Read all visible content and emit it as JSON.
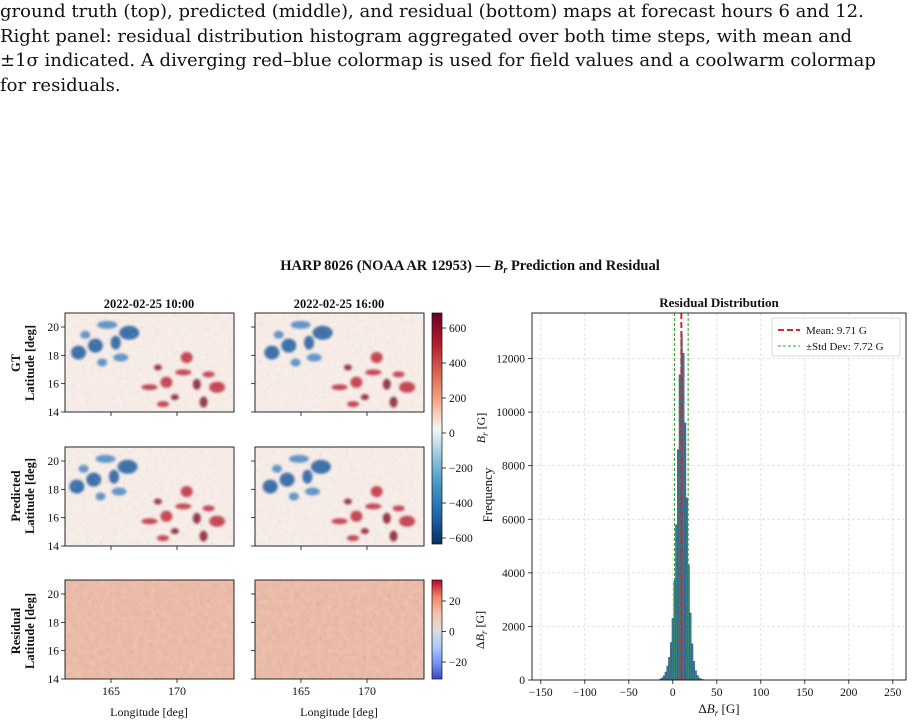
{
  "caption": {
    "lines": [
      "ground truth (top), predicted (middle), and residual (bottom) maps at forecast hours 6 and 12.",
      "Right panel: residual distribution histogram aggregated over both time steps, with mean and",
      "±1σ indicated. A diverging red–blue colormap is used for field values and a coolwarm colormap",
      "for residuals."
    ]
  },
  "figure": {
    "suptitle_prefix": "HARP 8026 (NOAA AR 12953) — ",
    "suptitle_var": "B",
    "suptitle_sub": "r",
    "suptitle_suffix": " Prediction and Residual",
    "col_titles": [
      "2022-02-25 10:00",
      "2022-02-25 16:00"
    ],
    "row_labels": [
      "GT",
      "Predicted",
      "Residual"
    ],
    "lat_label": "Latitude [deg]",
    "lon_label": "Longitude [deg]",
    "lat_ticks": [
      "20",
      "18",
      "16",
      "14"
    ],
    "lon_ticks": [
      "165",
      "170"
    ],
    "field_colorbar": {
      "ticks": [
        "600",
        "400",
        "200",
        "0",
        "−200",
        "−400",
        "−600"
      ],
      "label_var": "B",
      "label_sub": "r",
      "label_unit": " [G]",
      "colors": [
        "#053061",
        "#2166ac",
        "#4393c3",
        "#92c5de",
        "#f7f7f7",
        "#f4a582",
        "#d6604d",
        "#b2182b",
        "#67001f"
      ]
    },
    "residual_colorbar": {
      "ticks": [
        "20",
        "0",
        "−20"
      ],
      "label_prefix": "Δ",
      "label_var": "B",
      "label_sub": "r",
      "label_unit": " [G]",
      "colors": [
        "#3b4cc0",
        "#7396f5",
        "#b0cbfc",
        "#dddddd",
        "#f6bfa6",
        "#ee8669",
        "#b40426"
      ]
    }
  },
  "chart_data": {
    "type": "bar",
    "title": "Residual Distribution",
    "xlabel_prefix": "Δ",
    "xlabel_var": "B",
    "xlabel_sub": "r",
    "xlabel_unit": " [G]",
    "ylabel": "Frequency",
    "xlim": [
      -160,
      265
    ],
    "ylim": [
      0,
      13700
    ],
    "x_ticks": [
      -150,
      -100,
      -50,
      0,
      50,
      100,
      150,
      200,
      250
    ],
    "x_tick_labels": [
      "−150",
      "−100",
      "−50",
      "0",
      "50",
      "100",
      "150",
      "200",
      "250"
    ],
    "y_ticks": [
      0,
      2000,
      4000,
      6000,
      8000,
      10000,
      12000
    ],
    "y_tick_labels": [
      "0",
      "2000",
      "4000",
      "6000",
      "8000",
      "10000",
      "12000"
    ],
    "grid": true,
    "legend_position": "top-right",
    "mean": 9.71,
    "std": 7.72,
    "legend": [
      "Mean: 9.71 G",
      "±Std Dev: 7.72 G"
    ],
    "bar_color": "#3d7a94",
    "mean_color": "#d62728",
    "std_color": "#2ca02c",
    "histogram": {
      "bin_centers": [
        -14,
        -12,
        -10,
        -8,
        -6,
        -4,
        -2,
        0,
        2,
        4,
        6,
        8,
        10,
        12,
        14,
        16,
        18,
        20,
        22,
        24,
        26,
        28,
        30,
        32,
        34,
        36
      ],
      "counts": [
        40,
        80,
        160,
        300,
        520,
        850,
        1400,
        2300,
        3700,
        5800,
        8600,
        11400,
        12900,
        12200,
        9600,
        6800,
        4300,
        2500,
        1350,
        700,
        350,
        170,
        80,
        40,
        20,
        10
      ]
    }
  }
}
